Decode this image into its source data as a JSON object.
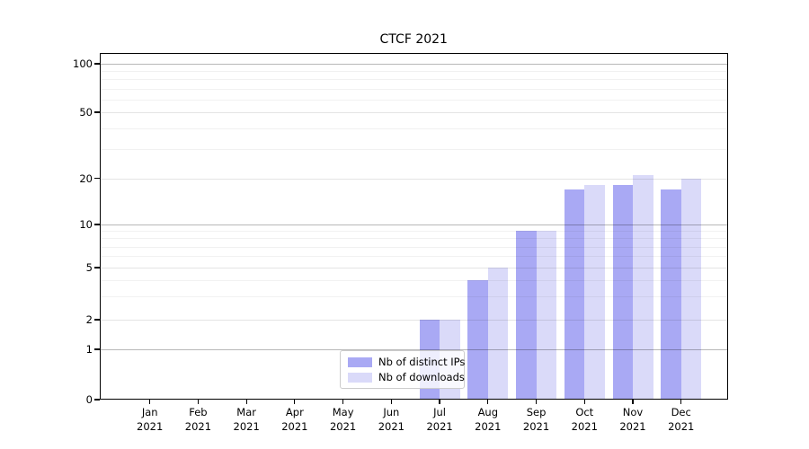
{
  "title": "CTCF 2021",
  "colors": {
    "ips": "#a9a9f4",
    "downloads": "#dadaf9",
    "grid_major": "#b8b8b8",
    "grid_mid": "#e4e4e4",
    "grid_minor": "#f1f1f1",
    "spine": "#000000",
    "legend_border": "#cccccc"
  },
  "legend": {
    "items": [
      {
        "label": "Nb of distinct IPs",
        "series": "ips"
      },
      {
        "label": "Nb of downloads",
        "series": "downloads"
      }
    ]
  },
  "y_axis": {
    "ticks": [
      {
        "value": 100,
        "label": "100"
      },
      {
        "value": 50,
        "label": "50"
      },
      {
        "value": 20,
        "label": "20"
      },
      {
        "value": 10,
        "label": "10"
      },
      {
        "value": 5,
        "label": "5"
      },
      {
        "value": 2,
        "label": "2"
      },
      {
        "value": 1,
        "label": "1"
      },
      {
        "value": 0,
        "label": "0"
      }
    ]
  },
  "chart_data": {
    "type": "bar",
    "title": "CTCF 2021",
    "categories": [
      "Jan 2021",
      "Feb 2021",
      "Mar 2021",
      "Apr 2021",
      "May 2021",
      "Jun 2021",
      "Jul 2021",
      "Aug 2021",
      "Sep 2021",
      "Oct 2021",
      "Nov 2021",
      "Dec 2021"
    ],
    "series": [
      {
        "name": "Nb of distinct IPs",
        "color_key": "ips",
        "values": [
          0,
          0,
          0,
          0,
          0,
          0,
          2,
          4,
          9,
          17,
          18,
          17
        ]
      },
      {
        "name": "Nb of downloads",
        "color_key": "downloads",
        "values": [
          0,
          0,
          0,
          0,
          0,
          0,
          2,
          5,
          9,
          18,
          21,
          20
        ]
      }
    ],
    "xlabel": "",
    "ylabel": "",
    "yscale": "symlog",
    "y_ticks_labeled": [
      0,
      1,
      2,
      5,
      10,
      20,
      50,
      100
    ],
    "y_minor_gridlines": [
      3,
      4,
      6,
      7,
      8,
      9,
      30,
      40,
      60,
      70,
      80,
      90
    ],
    "ylim": [
      0,
      120
    ],
    "grid": true,
    "legend_position": "lower center-left inside plot"
  }
}
